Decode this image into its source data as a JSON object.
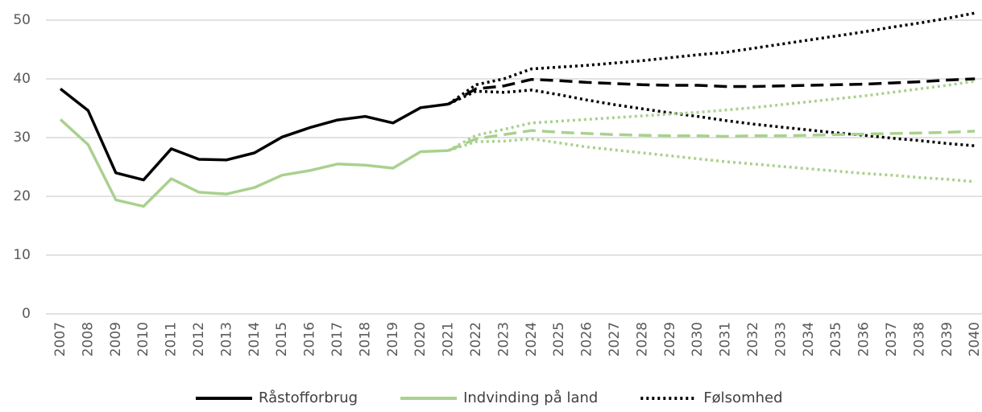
{
  "chart_data": {
    "type": "line",
    "categories": [
      "2007",
      "2008",
      "2009",
      "2010",
      "2011",
      "2012",
      "2013",
      "2014",
      "2015",
      "2016",
      "2017",
      "2018",
      "2019",
      "2020",
      "2021",
      "2022",
      "2023",
      "2024",
      "2025",
      "2026",
      "2027",
      "2028",
      "2029",
      "2030",
      "2031",
      "2032",
      "2033",
      "2034",
      "2035",
      "2036",
      "2037",
      "2038",
      "2039",
      "2040"
    ],
    "ylim": [
      0,
      50
    ],
    "yticks": [
      0,
      10,
      20,
      30,
      40,
      50
    ],
    "grid": true,
    "legend": "bottom",
    "series": [
      {
        "name": "Råstofforbrug",
        "color": "#000000",
        "style": "solid",
        "values": [
          38.3,
          34.6,
          24,
          22.8,
          28.1,
          26.3,
          26.2,
          27.4,
          30.1,
          31.7,
          33,
          33.6,
          32.5,
          35.1,
          35.7,
          null,
          null,
          null,
          null,
          null,
          null,
          null,
          null,
          null,
          null,
          null,
          null,
          null,
          null,
          null,
          null,
          null,
          null,
          null
        ]
      },
      {
        "name": "Indvinding på land",
        "color": "#a9d18e",
        "style": "solid",
        "values": [
          33.1,
          28.8,
          19.4,
          18.3,
          23,
          20.7,
          20.4,
          21.5,
          23.6,
          24.4,
          25.5,
          25.3,
          24.8,
          27.6,
          27.8,
          null,
          null,
          null,
          null,
          null,
          null,
          null,
          null,
          null,
          null,
          null,
          null,
          null,
          null,
          null,
          null,
          null,
          null,
          null
        ]
      },
      {
        "name": "Følsomhed",
        "color": "#000000",
        "style": "dotted",
        "values": [
          null,
          null,
          null,
          null,
          null,
          null,
          null,
          null,
          null,
          null,
          null,
          null,
          null,
          null,
          35.7,
          39,
          40,
          41.7,
          42,
          42.3,
          42.7,
          43.1,
          43.6,
          44.1,
          44.5,
          45.2,
          45.9,
          46.6,
          47.3,
          48,
          48.8,
          49.5,
          50.3,
          51.2
        ]
      },
      {
        "color": "#000000",
        "style": "dotted",
        "values": [
          null,
          null,
          null,
          null,
          null,
          null,
          null,
          null,
          null,
          null,
          null,
          null,
          null,
          null,
          35.7,
          37.9,
          37.7,
          38.1,
          37.3,
          36.4,
          35.6,
          34.9,
          34.2,
          33.6,
          32.9,
          32.3,
          31.8,
          31.3,
          30.8,
          30.4,
          29.9,
          29.5,
          29,
          28.6
        ]
      },
      {
        "color": "#000000",
        "style": "dashed",
        "values": [
          null,
          null,
          null,
          null,
          null,
          null,
          null,
          null,
          null,
          null,
          null,
          null,
          null,
          null,
          35.7,
          38.3,
          38.8,
          39.9,
          39.7,
          39.4,
          39.2,
          39,
          38.9,
          38.9,
          38.7,
          38.7,
          38.8,
          38.9,
          39,
          39.1,
          39.3,
          39.5,
          39.8,
          40
        ]
      },
      {
        "color": "#a9d18e",
        "style": "dotted",
        "values": [
          null,
          null,
          null,
          null,
          null,
          null,
          null,
          null,
          null,
          null,
          null,
          null,
          null,
          null,
          27.8,
          30.4,
          31.4,
          32.5,
          32.8,
          33.1,
          33.4,
          33.7,
          34,
          34.3,
          34.7,
          35.1,
          35.6,
          36.1,
          36.6,
          37.1,
          37.7,
          38.3,
          38.9,
          39.6
        ]
      },
      {
        "color": "#a9d18e",
        "style": "dotted",
        "values": [
          null,
          null,
          null,
          null,
          null,
          null,
          null,
          null,
          null,
          null,
          null,
          null,
          null,
          null,
          27.8,
          29.3,
          29.4,
          29.8,
          29.1,
          28.4,
          27.9,
          27.4,
          26.9,
          26.4,
          25.9,
          25.5,
          25.1,
          24.7,
          24.3,
          23.9,
          23.6,
          23.2,
          22.9,
          22.5
        ]
      },
      {
        "color": "#a9d18e",
        "style": "dashed",
        "values": [
          null,
          null,
          null,
          null,
          null,
          null,
          null,
          null,
          null,
          null,
          null,
          null,
          null,
          null,
          27.8,
          29.8,
          30.5,
          31.2,
          30.9,
          30.7,
          30.5,
          30.4,
          30.3,
          30.3,
          30.2,
          30.3,
          30.3,
          30.4,
          30.5,
          30.6,
          30.7,
          30.8,
          30.9,
          31.1
        ]
      }
    ]
  }
}
